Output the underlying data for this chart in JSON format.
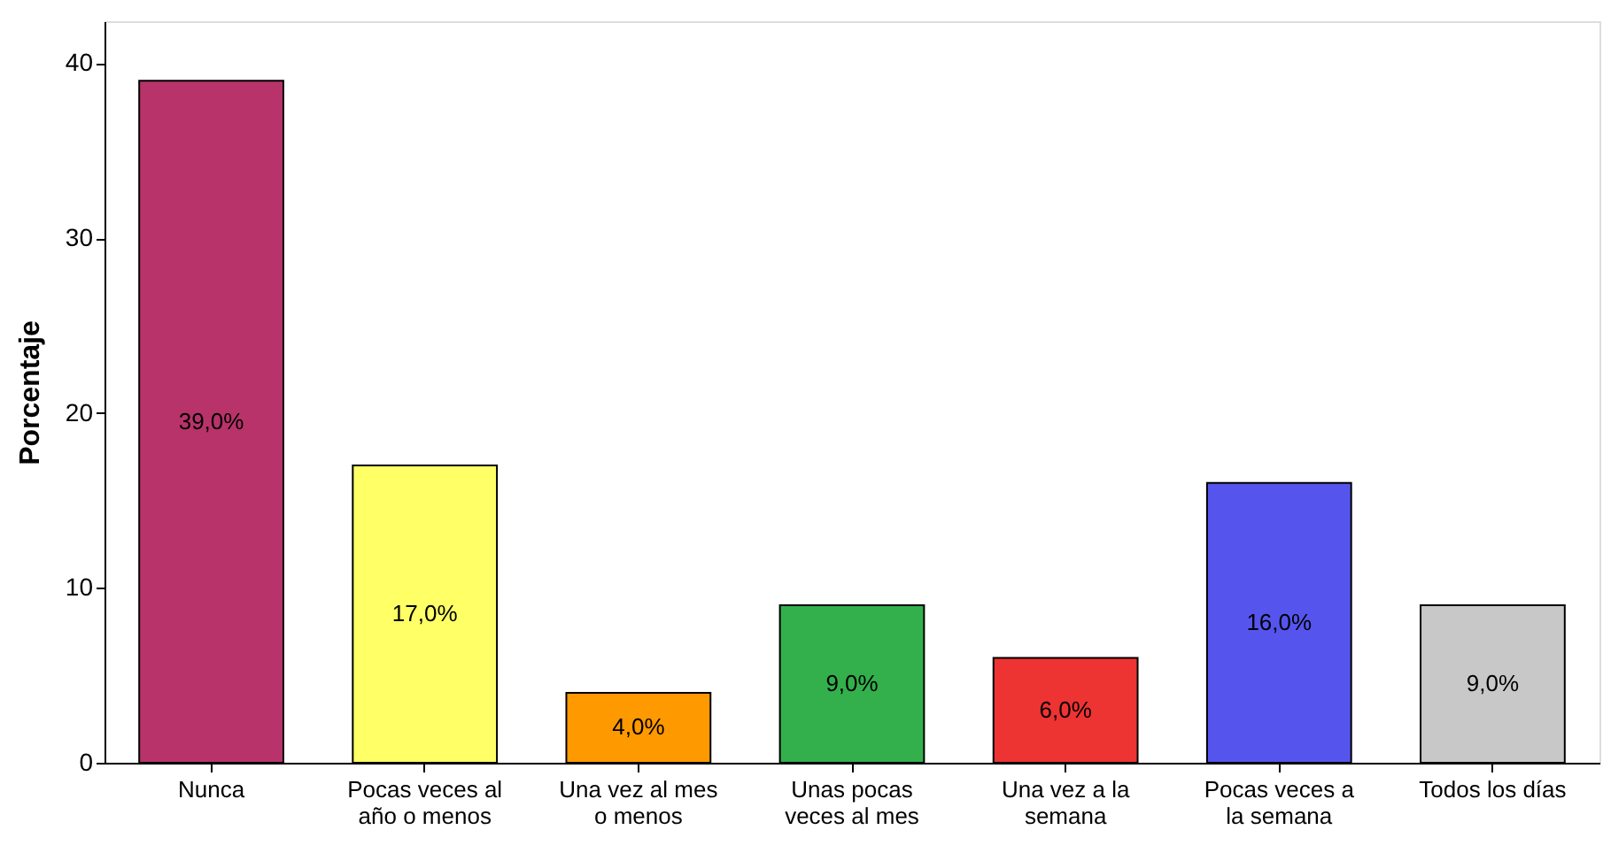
{
  "chart_data": {
    "type": "bar",
    "ylabel": "Porcentaje",
    "categories": [
      "Nunca",
      "Pocas veces al año o menos",
      "Una vez al mes o menos",
      "Unas pocas veces al mes",
      "Una vez a la semana",
      "Pocas veces a la semana",
      "Todos los días"
    ],
    "values": [
      39,
      17,
      4,
      9,
      6,
      16,
      9
    ],
    "colors": [
      "#b8336a",
      "#ffff66",
      "#ff9900",
      "#33b04c",
      "#ee3333",
      "#5555ee",
      "#c8c8c8"
    ],
    "value_labels": [
      "39,0%",
      "17,0%",
      "4,0%",
      "9,0%",
      "6,0%",
      "16,0%",
      "9,0%"
    ],
    "ylim": [
      0,
      42.4
    ],
    "yticks": [
      0,
      10,
      20,
      30,
      40
    ],
    "grid": false
  }
}
